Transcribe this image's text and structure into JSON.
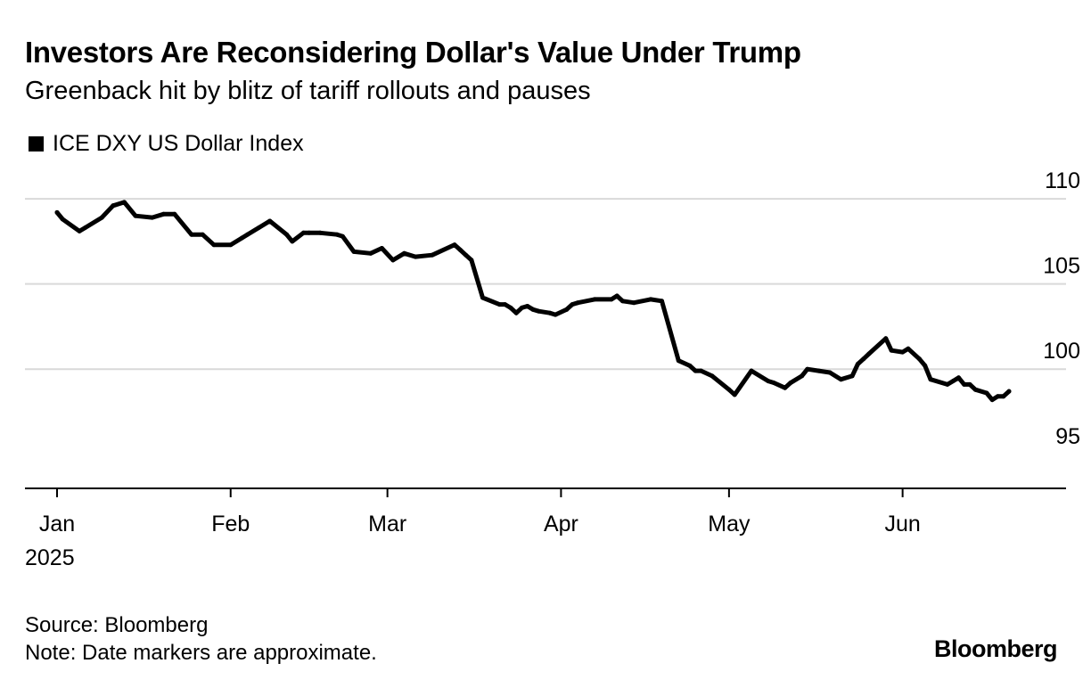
{
  "header": {
    "title": "Investors Are Reconsidering Dollar's Value Under Trump",
    "subtitle": "Greenback hit by blitz of tariff rollouts and pauses"
  },
  "legend": {
    "label": "ICE DXY US Dollar Index",
    "swatch_color": "#000000"
  },
  "footer": {
    "source": "Source: Bloomberg",
    "note": "Note: Date markers are approximate.",
    "brand": "Bloomberg"
  },
  "chart_data": {
    "type": "line",
    "title": "Investors Are Reconsidering Dollar's Value Under Trump",
    "subtitle": "Greenback hit by blitz of tariff rollouts and pauses",
    "xlabel": "",
    "ylabel": "",
    "ylim": [
      93,
      111
    ],
    "yticks": [
      95,
      100,
      105,
      110
    ],
    "xtick_labels": [
      "Jan",
      "Feb",
      "Mar",
      "Apr",
      "May",
      "Jun"
    ],
    "x_year_label": "2025",
    "x_domain": [
      0,
      170
    ],
    "x_ticks": [
      0,
      31,
      59,
      90,
      120,
      151
    ],
    "grid": true,
    "legend": "top-left",
    "series": [
      {
        "name": "ICE DXY US Dollar Index",
        "color": "#000000",
        "x": [
          0,
          1,
          4,
          5,
          8,
          10,
          12,
          14,
          17,
          19,
          21,
          24,
          26,
          28,
          31,
          33,
          34,
          36,
          38,
          41,
          42,
          44,
          45,
          47,
          50,
          51,
          53,
          56,
          58,
          60,
          62,
          64,
          67,
          71,
          72,
          73,
          74,
          76,
          79,
          80,
          81,
          82,
          83,
          84,
          85,
          86,
          88,
          89,
          91,
          92,
          93,
          96,
          99,
          100,
          101,
          103,
          106,
          108,
          111,
          113,
          114,
          115,
          117,
          120,
          121,
          124,
          127,
          128,
          130,
          131,
          133,
          134,
          136,
          138,
          140,
          142,
          143,
          144,
          145,
          148,
          149,
          151,
          152,
          154,
          155,
          156,
          159,
          160,
          161,
          162,
          163,
          164,
          166,
          167,
          168,
          169,
          170
        ],
        "y": [
          109.2,
          108.8,
          108.1,
          108.3,
          108.9,
          109.6,
          109.8,
          109.0,
          108.9,
          109.1,
          109.1,
          107.9,
          107.9,
          107.3,
          107.3,
          107.7,
          107.9,
          108.3,
          108.7,
          107.9,
          107.5,
          108.0,
          108.0,
          108.0,
          107.9,
          107.8,
          106.9,
          106.8,
          107.1,
          106.4,
          106.8,
          106.6,
          106.7,
          107.3,
          107.0,
          106.7,
          106.4,
          104.2,
          103.8,
          103.8,
          103.6,
          103.3,
          103.6,
          103.7,
          103.5,
          103.4,
          103.3,
          103.2,
          103.5,
          103.8,
          103.9,
          104.1,
          104.1,
          104.3,
          104.0,
          103.9,
          104.1,
          104.0,
          100.5,
          100.2,
          99.9,
          99.9,
          99.6,
          98.8,
          98.5,
          99.9,
          99.3,
          99.2,
          98.9,
          99.2,
          99.6,
          100.0,
          99.9,
          99.8,
          99.4,
          99.6,
          100.3,
          100.6,
          100.9,
          101.8,
          101.1,
          101.0,
          101.2,
          100.6,
          100.2,
          99.4,
          99.1,
          99.3,
          99.5,
          99.1,
          99.1,
          98.8,
          98.6,
          98.2,
          98.4,
          98.4,
          98.7
        ]
      }
    ]
  }
}
